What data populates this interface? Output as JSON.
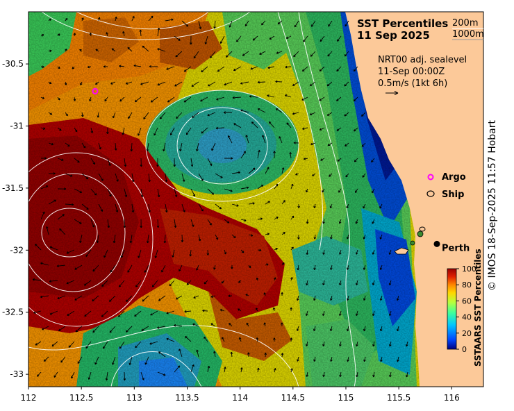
{
  "title": {
    "line1": "SST Percentiles",
    "line2": "11 Sep 2025"
  },
  "depth_legend": {
    "contour_a": "200m",
    "contour_b": "1000m"
  },
  "current_info": {
    "line1": "NRT00 adj. sealevel",
    "line2": "11-Sep 00:00Z",
    "line3": "0.5m/s (1kt 6h)"
  },
  "marker_legend": {
    "argo": "Argo",
    "ship": "Ship"
  },
  "city": {
    "name": "Perth",
    "lon": 115.86,
    "lat": -31.95
  },
  "argo_float": {
    "lon": 112.63,
    "lat": -30.72
  },
  "axes": {
    "lon_ticks": [
      "112",
      "112.5",
      "113",
      "113.5",
      "114",
      "114.5",
      "115",
      "115.5",
      "116"
    ],
    "lat_ticks": [
      "-30.5",
      "-31",
      "-31.5",
      "-32",
      "-32.5",
      "-33"
    ],
    "lon_range": [
      112,
      116.3
    ],
    "lat_range": [
      -30.08,
      -33.1
    ]
  },
  "colorbar": {
    "label": "SSTAARS SST Percentiles",
    "ticks": [
      "0",
      "20",
      "40",
      "60",
      "80",
      "100"
    ],
    "colors": [
      "#00007f",
      "#0047ff",
      "#00c5ff",
      "#3cff9c",
      "#b6ff3e",
      "#ffd700",
      "#ff8700",
      "#e02000",
      "#990000"
    ]
  },
  "copyright": "© IMOS 18-Sep-2025 11:57 Hobart",
  "colors": {
    "land": "#fcc999",
    "frame": "#000000"
  }
}
